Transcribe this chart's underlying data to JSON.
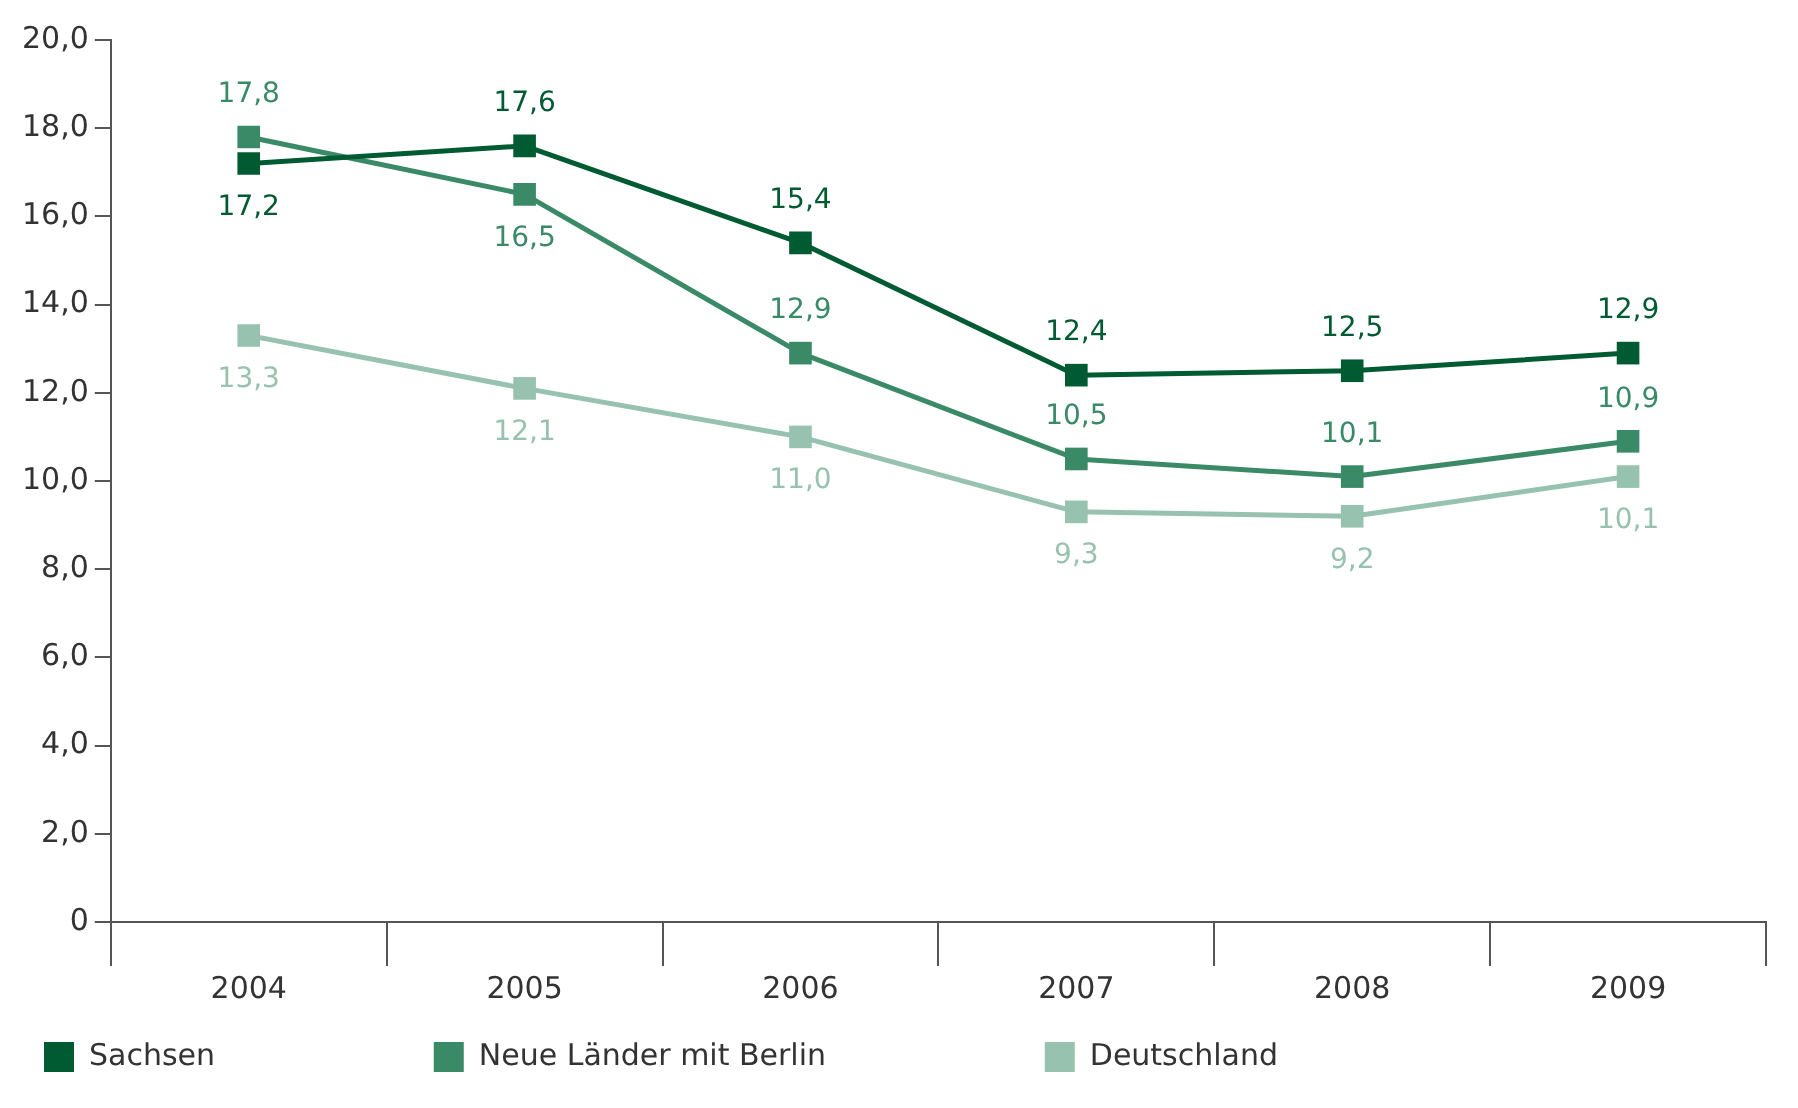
{
  "chart_data": {
    "type": "line",
    "categories": [
      "2004",
      "2005",
      "2006",
      "2007",
      "2008",
      "2009"
    ],
    "series": [
      {
        "name": "Sachsen",
        "color": "#005a32",
        "values": [
          17.2,
          17.6,
          15.4,
          12.4,
          12.5,
          12.9
        ],
        "value_labels": [
          "17,2",
          "17,6",
          "15,4",
          "12,4",
          "12,5",
          "12,9"
        ]
      },
      {
        "name": "Neue Länder mit Berlin",
        "color": "#3a8a68",
        "values": [
          17.8,
          16.5,
          12.9,
          10.5,
          10.1,
          10.9
        ],
        "value_labels": [
          "17,8",
          "16,5",
          "12,9",
          "10,5",
          "10,1",
          "10,9"
        ]
      },
      {
        "name": "Deutschland",
        "color": "#96c2af",
        "values": [
          13.3,
          12.1,
          11.0,
          9.3,
          9.2,
          10.1
        ],
        "value_labels": [
          "13,3",
          "12,1",
          "11,0",
          "9,3",
          "9,2",
          "10,1"
        ]
      }
    ],
    "ylim": [
      0,
      20
    ],
    "yticks": [
      {
        "value": 0,
        "label": "0"
      },
      {
        "value": 2,
        "label": "2,0"
      },
      {
        "value": 4,
        "label": "4,0"
      },
      {
        "value": 6,
        "label": "6,0"
      },
      {
        "value": 8,
        "label": "8,0"
      },
      {
        "value": 10,
        "label": "10,0"
      },
      {
        "value": 12,
        "label": "12,0"
      },
      {
        "value": 14,
        "label": "14,0"
      },
      {
        "value": 16,
        "label": "16,0"
      },
      {
        "value": 18,
        "label": "18,0"
      },
      {
        "value": 20,
        "label": "20,0"
      }
    ],
    "grid": false,
    "legend": "bottom left",
    "marker": "square",
    "line_style": "solid"
  }
}
